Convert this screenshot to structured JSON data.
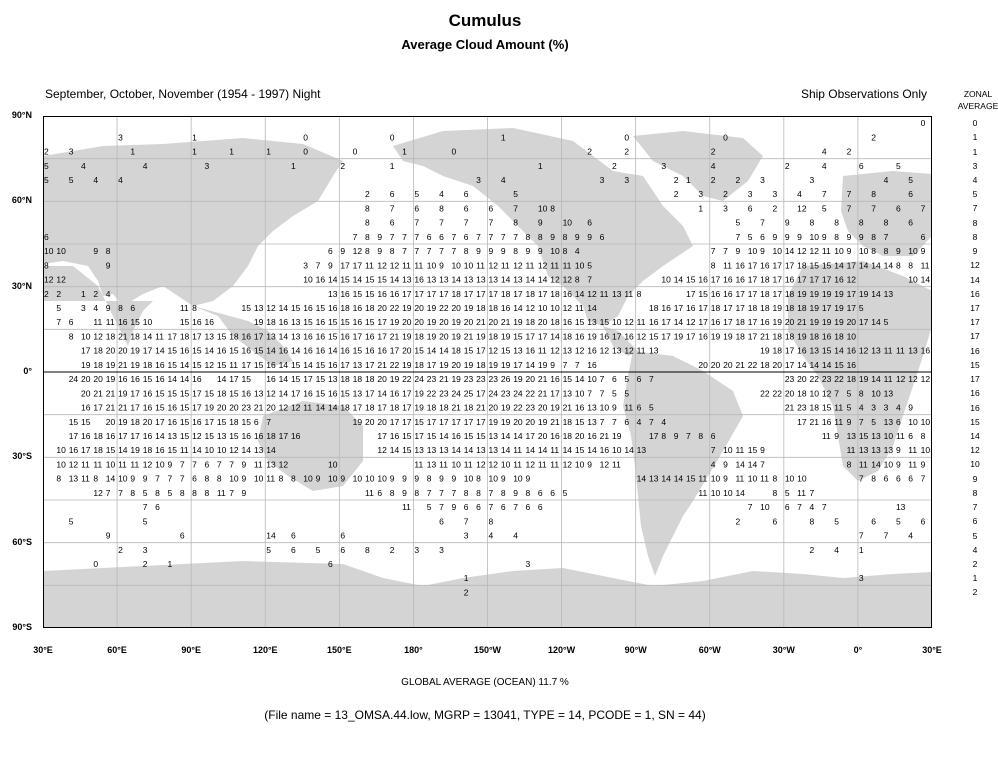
{
  "header": {
    "title": "Cumulus",
    "subtitle": "Average Cloud Amount (%)",
    "season": "September, October, November (1954 - 1997) Night",
    "source_note": "Ship Observations Only",
    "zonal_label_1": "ZONAL",
    "zonal_label_2": "AVERAGE"
  },
  "axes": {
    "lat_labels": [
      "90°N",
      "60°N",
      "30°N",
      "0°",
      "30°S",
      "60°S",
      "90°S"
    ],
    "lon_labels": [
      "30°E",
      "60°E",
      "90°E",
      "120°E",
      "150°E",
      "180°",
      "150°W",
      "120°W",
      "90°W",
      "60°W",
      "30°W",
      "0°",
      "30°E"
    ]
  },
  "colors": {
    "land": "#d4d4d4",
    "ocean": "#ffffff",
    "grid": "#b8b8b8",
    "frame": "#000000"
  },
  "zonal_averages": [
    "0",
    "1",
    "1",
    "3",
    "4",
    "5",
    "7",
    "8",
    "8",
    "9",
    "12",
    "14",
    "16",
    "17",
    "17",
    "17",
    "16",
    "15",
    "17",
    "16",
    "16",
    "15",
    "14",
    "12",
    "10",
    "9",
    "8",
    "7",
    "6",
    "5",
    "4",
    "2",
    "1",
    "2"
  ],
  "chart_data": {
    "type": "map-grid",
    "lat_range": [
      -90,
      90
    ],
    "lon_range": [
      30,
      390
    ],
    "lon_step": 5,
    "rows": [
      {
        "lat": 87.5,
        "cells": [
          [
            -1,
            -1,
            -1,
            -1,
            -1,
            -1,
            -1,
            -1,
            -1,
            -1,
            -1,
            -1,
            -1,
            -1,
            -1,
            -1,
            -1,
            -1,
            -1,
            -1,
            -1,
            -1,
            -1,
            -1,
            -1,
            -1,
            -1,
            -1,
            -1,
            -1,
            -1,
            -1,
            -1,
            -1,
            -1,
            -1,
            -1,
            -1,
            -1,
            -1,
            -1,
            -1,
            -1,
            -1,
            -1,
            -1,
            -1,
            -1,
            -1,
            -1,
            -1,
            -1,
            -1,
            -1,
            -1,
            -1,
            -1,
            -1,
            -1,
            -1,
            -1,
            -1,
            0,
            -1,
            -1,
            -1,
            -1,
            -1,
            -1,
            -1,
            -1,
            -1
          ]
        ]
      },
      {
        "lat": 82.5,
        "cells": [
          [
            -1,
            -1,
            -1,
            -1,
            -1,
            -1,
            3,
            -1,
            -1,
            -1,
            -1,
            -1,
            -1,
            1,
            -1,
            -1,
            -1,
            -1,
            -1,
            -1,
            -1,
            -1,
            -1,
            0,
            -1,
            -1,
            -1,
            -1,
            -1,
            -1,
            -1,
            0,
            -1,
            -1,
            -1,
            -1,
            -1,
            -1,
            -1,
            -1,
            -1,
            1,
            -1,
            -1,
            -1,
            -1,
            -1,
            -1,
            -1,
            -1,
            -1,
            0,
            -1,
            -1,
            -1,
            -1,
            -1,
            -1,
            -1,
            -1,
            0,
            -1,
            -1,
            -1,
            -1,
            -1,
            -1,
            -1,
            -1,
            -1,
            2,
            -1,
            -1,
            -1,
            -1,
            -1,
            4,
            -1
          ]
        ]
      },
      {
        "lat": 77.5,
        "cells": [
          [
            2,
            -1,
            3,
            -1,
            -1,
            -1,
            -1,
            -1,
            1,
            -1,
            -1,
            -1,
            -1,
            -1,
            1,
            -1,
            -1,
            -1,
            1,
            -1,
            -1,
            -1,
            1,
            -1,
            -1,
            -1,
            0,
            -1,
            -1,
            -1,
            -1,
            0,
            -1,
            -1,
            -1,
            -1,
            1,
            -1,
            -1,
            -1,
            -1,
            0,
            -1,
            -1,
            -1,
            -1,
            -1,
            -1,
            -1,
            -1,
            2,
            -1,
            -1,
            -1,
            2,
            -1,
            -1,
            -1,
            -1,
            -1,
            2,
            -1,
            -1,
            -1,
            -1,
            -1,
            -1,
            -1,
            -1,
            -1,
            4,
            -1,
            -1,
            2,
            -1
          ]
        ]
      },
      {
        "lat": 72.5,
        "cells": [
          [
            5,
            -1,
            -1,
            4,
            -1,
            -1,
            -1,
            -1,
            4,
            -1,
            -1,
            -1,
            -1,
            -1,
            3,
            -1,
            -1,
            -1,
            -1,
            -1,
            -1,
            -1,
            1,
            -1,
            -1,
            -1,
            -1,
            2,
            -1,
            -1,
            -1,
            1,
            -1,
            -1,
            -1,
            -1,
            -1,
            -1,
            -1,
            -1,
            -1,
            -1,
            -1,
            -1,
            -1,
            1,
            -1,
            -1,
            -1,
            -1,
            -1,
            -1,
            2,
            -1,
            -1,
            -1,
            -1,
            3,
            -1,
            -1,
            -1,
            4,
            -1,
            -1,
            -1,
            -1,
            2,
            -1,
            -1,
            4,
            -1,
            -1,
            -1,
            6,
            -1,
            -1,
            -1,
            5
          ]
        ]
      },
      {
        "lat": 67.5,
        "cells": [
          [
            5,
            -1,
            5,
            -1,
            4,
            -1,
            4,
            -1,
            -1,
            -1,
            -1,
            -1,
            -1,
            -1,
            -1,
            -1,
            -1,
            -1,
            -1,
            -1,
            -1,
            -1,
            -1,
            -1,
            -1,
            -1,
            -1,
            -1,
            -1,
            -1,
            -1,
            -1,
            -1,
            -1,
            3,
            -1,
            4,
            -1,
            -1,
            -1,
            -1,
            -1,
            -1,
            -1,
            -1,
            3,
            -1,
            3,
            -1,
            -1,
            2,
            -1,
            1,
            -1,
            2,
            -1,
            2,
            -1,
            3,
            -1,
            -1,
            -1,
            3,
            -1,
            -1,
            -1,
            -1,
            4,
            -1,
            5,
            -1,
            -1,
            8
          ]
        ]
      },
      {
        "lat": 62.5,
        "cells": [
          [
            -1,
            -1,
            -1,
            -1,
            -1,
            -1,
            -1,
            -1,
            -1,
            -1,
            -1,
            -1,
            -1,
            -1,
            -1,
            -1,
            -1,
            -1,
            -1,
            -1,
            -1,
            -1,
            -1,
            -1,
            -1,
            -1,
            2,
            -1,
            6,
            -1,
            5,
            -1,
            4,
            -1,
            6,
            -1,
            -1,
            -1,
            5,
            -1,
            -1,
            -1,
            -1,
            -1,
            -1,
            -1,
            -1,
            -1,
            -1,
            -1,
            2,
            -1,
            3,
            -1,
            2,
            -1,
            3,
            -1,
            3,
            -1,
            4,
            -1,
            7,
            -1,
            7,
            -1,
            8,
            -1,
            -1,
            6,
            -1,
            -1,
            -1
          ]
        ]
      }
    ],
    "note": "Cell values are percent cloud amount on a 5-degree grid; -1 = no value. Full grid values are embedded in the drawing rows below."
  },
  "grid_rows": [
    {
      "lat": 87.5,
      "vals": "|||||||||||||||||||||||||||||||||||||||||||||||||||||||||||||||||||||||0"
    },
    {
      "lat": 82.5,
      "vals": "||||||3||||||1|||||||||0|||||||0|||||||||1||||||||||0||||||||0||||||||||||2||||||4"
    },
    {
      "lat": 77.5,
      "vals": "2||3|||||1|||||1|||1|||1|||0||||0||||1||||0|||||||||||2|||2|||||||2|||||||||4||2"
    },
    {
      "lat": 72.5,
      "vals": "5|||4|||||4|||||3|||||||1||||2||||1||||||||||||1||||||2||||3||||4||||||2|||4|||6|||5"
    },
    {
      "lat": 67.5,
      "vals": "5||5||4||4|||||||||||||||||||||||||||||3||4||||||||3||3||||2|1||2||2||3||||3||||||4||5|||8"
    },
    {
      "lat": 62.5,
      "vals": "||||||||||||||||||||||||||2||6||5||4||6||||5|||||||||||||2||3||2||3||3||4||7||7||8|||6"
    },
    {
      "lat": 57.5,
      "vals": "||||||||||||||||||||||||||8||7||6||8||6||6||7||10|8||||||||||||1||3||6||2||12||5||7||7||6||7||9|8|9"
    },
    {
      "lat": 52.5,
      "vals": "||||||||||||||||||||||||||8||6||7||7||7||7||8||9||10||6||||||||||||5||7||9||8||8||8||8||6|||||8|6"
    },
    {
      "lat": 47.5,
      "vals": "6|||||||||||||||||||||||||7|8|9|7|7|7|6|6|7|6|7|7|7|7|8|8|9|8|9|9|6|||||||||||7|5|6|9|9|9|10|9|8|9|9|8|7|||6"
    },
    {
      "lat": 42.5,
      "vals": "10|10|||9|8||||||||||||||||||6|9|12|8|9|8|7|7|7|7|7|8|9|9|9|8|9|9|10|8|4|||||||||||7|7|9|10|9|10|14|12|12|11|10|9|10|8|8|9|10|9|6|7|7"
    },
    {
      "lat": 37.5,
      "vals": "8|||||9||||||||||||||||3|7|9|17|17|11|12|12|11|11|10|9|10|10|11|12|11|12|11|12|11|11|10|5||||||||||8|11|16|17|16|17|17|18|15|15|14|17|14|14|14|8|8|11|11|10|12|9|7"
    },
    {
      "lat": 32.5,
      "vals": "12|12||||||||||||||||||||10|16|14|15|14|15|15|14|13|16|13|13|14|13|13|13|14|13|14|14|12|12|8|7||||||10|14|15|16|17|16|16|17|18|17|16|17|17|17|16|12|||||10|14|11|12"
    },
    {
      "lat": 27.5,
      "vals": "2|2||1|2|4||||||||||||||||||13|16|15|15|16|16|17|17|17|17|18|17|17|17|18|17|18|17|18|16|14|12|11|13|11|8||||17|15|16|16|17|17|18|17|18|19|19|19|19|17|19|14|13"
    },
    {
      "lat": 22.5,
      "vals": "|5||3|4|9|8|6||||11|8||||15|13|12|14|15|16|15|16|18|16|18|20|22|19|20|19|22|20|19|18|18|16|14|12|10|10|12|11|14|||||18|16|17|16|17|18|17|17|18|18|19|18|18|19|17|19|17|5"
    },
    {
      "lat": 17.5,
      "vals": "|7|6||11|11|16|15|10|||15|16|16||||19|18|16|13|15|16|15|15|16|15|17|19|20|20|19|20|19|20|21|20|21|19|18|20|18|16|15|13|15|10|12|11|16|17|14|12|17|16|17|18|17|16|19|20|21|19|19|19|20|17|14|5"
    },
    {
      "lat": 12.5,
      "vals": "||8|10|12|18|21|18|14|11|17|18|17|13|15|18|16|17|13|14|13|16|16|15|16|17|16|17|21|19|18|19|20|19|21|19|18|19|15|17|17|14|18|16|19|16|17|16|12|15|17|19|17|16|19|19|18|17|21|18|18|19|18|16|18|10"
    },
    {
      "lat": 7.5,
      "vals": "|||17|18|20|20|19|17|14|15|16|15|14|16|15|16|15|14|16|14|16|16|14|16|15|16|16|17|20|15|14|14|18|15|17|12|15|13|16|11|12|13|12|16|12|13|12|11|13|||||||||19|18|17|16|13|15|14|16|12|13|11|11|13|16|18"
    },
    {
      "lat": 2.5,
      "vals": "|||19|18|19|21|19|18|16|15|14|15|12|15|11|17|15|16|14|15|14|15|16|17|13|17|21|22|19|18|17|19|20|19|18|19|19|17|14|19|9|7|7|16|||||||||20|20|20|21|22|18|20|17|14|14|14|15|16"
    },
    {
      "lat": -2.5,
      "vals": "||24|20|20|19|16|16|15|16|14|14|16||14|17|15||16|14|15|17|15|13|18|18|18|20|19|22|24|23|21|19|23|23|23|26|19|20|21|16|15|14|10|7|6|5|6|7|||||||||||23|20|22|23|22|18|19|14|11|12|12|12|12"
    },
    {
      "lat": -7.5,
      "vals": "|||20|21|21|19|17|16|15|15|15|17|15|18|15|16|13|12|14|17|16|15|16|15|13|17|14|16|17|19|22|23|24|25|17|24|23|24|22|21|17|13|10|7|7|5|5|||||||||||22|22|20|18|10|12|7|5|8|10|13"
    },
    {
      "lat": -12.5,
      "vals": "|||16|17|21|21|17|16|15|16|15|17|19|20|20|23|21|20|12|12|11|14|14|18|17|18|17|18|17|19|18|18|21|18|21|20|19|22|23|20|19|21|16|13|10|9|11|6|5|||||||||||21|23|18|15|11|5|4|3|3|4|9"
    },
    {
      "lat": -17.5,
      "vals": "||15|15||20|19|18|20|17|16|15|16|17|15|18|15|6|7|||||||19|20|20|17|17|15|17|17|17|17|17|19|19|20|20|19|21|18|15|13|7|7|6|4|7|4|||||||||||17|21|16|11|9|7|5|13|6|10|10"
    },
    {
      "lat": -22.5,
      "vals": "||17|16|18|16|17|17|16|14|13|15|12|15|13|15|16|16|18|17|16|||||||17|16|15|17|15|14|16|15|15|13|14|14|17|20|16|18|20|16|21|19|||17|8|9|7|8|6|||||||||11|9|13|15|13|10|11|6|8|6|6|6"
    },
    {
      "lat": -27.5,
      "vals": "|10|16|17|18|15|14|19|18|16|15|11|14|10|10|12|14|13|14|||||||||12|14|15|13|13|13|14|14|13|13|14|11|14|14|11|14|15|14|16|10|14|13||||||7|10|11|15|9|||||||11|13|13|13|9|11|10|11|8|8|12|7|8|10|3"
    },
    {
      "lat": -32.5,
      "vals": "|10|12|11|11|10|11|11|12|10|9|7|7|6|7|7|9|11|13|12||||10|||||||11|13|11|10|11|12|12|10|11|12|11|11|12|10|9|12|11||||||||4|9|14|14|7|||||||8|11|14|10|9|11|9|7|8|8|11|9|11|9|8|9|9"
    },
    {
      "lat": -37.5,
      "vals": "|8|13|11|8|14|10|9|9|7|7|7|6|8|8|10|9|10|11|8|8|10|9|10|9|10|10|10|9|9|9|8|9|9|10|8|10|9|10|9|||||||||14|13|14|14|15|11|10|9|11|10|11|8|10|10|||||7|8|6|6|6|7|8|9|10|10|15"
    },
    {
      "lat": -42.5,
      "vals": "||||12|7|7|8|5|8|5|8|8|8|11|7|9||||||||||11|6|8|9|8|7|7|7|8|8|7|8|9|8|6|6|5|||||||||||11|10|10|14|||8|5|11|7||||||||||5"
    },
    {
      "lat": -47.5,
      "vals": "||||||||7|6||||||||||||||||||||11||5|7|9|6|6|7|6|7|6|6|||||||||||||||||7|10||6|7|4|7||||||13"
    },
    {
      "lat": -52.5,
      "vals": "||5||||||5||||||||||||||||||||||||6||7||8||||||||||||||||||||2|||6|||8||5|||6||5||6||5||||||||||||||||||7"
    },
    {
      "lat": -57.5,
      "vals": "|||||9||||||6|||||||14||6||||6||||||||||3||4||4||||||||||||||||||||||||||||7||7||4||4||3"
    },
    {
      "lat": -62.5,
      "vals": "||||||2||3||||||||||5||6||5||6||8||2||3||3||||||||||||||||||||||||||||||2||4||1"
    },
    {
      "lat": -67.5,
      "vals": "||||0||||2||1|||||||||||||6||||||||||||||||3"
    },
    {
      "lat": -72.5,
      "vals": "||||||||||||||||||||||||||||||||||1||||||||||||||||||||||||||||||||3"
    },
    {
      "lat": -77.5,
      "vals": "||||||||||||||||||||||||||||||||||2"
    }
  ],
  "footer": {
    "global_average": "GLOBAL AVERAGE (OCEAN)   11.7 %",
    "file_info": "(File name = 13_OMSA.44.low, MGRP = 13041, TYPE = 14, PCODE = 1, SN = 44)"
  }
}
